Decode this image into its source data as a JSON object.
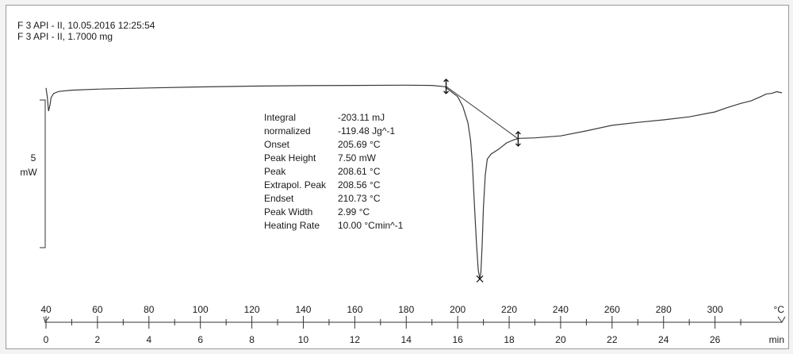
{
  "header": {
    "line1": "F 3 API - II, 10.05.2016 12:25:54",
    "line2": "F 3 API - II, 1.7000 mg"
  },
  "scale_bar": {
    "value": "5",
    "unit": "mW"
  },
  "results": [
    {
      "label": "Integral",
      "value": "-203.11 mJ"
    },
    {
      "label": "  normalized",
      "value": "-119.48 Jg^-1"
    },
    {
      "label": "Onset",
      "value": "205.69 °C"
    },
    {
      "label": "Peak Height",
      "value": "7.50 mW"
    },
    {
      "label": "Peak",
      "value": "208.61 °C"
    },
    {
      "label": "Extrapol. Peak",
      "value": "208.56 °C"
    },
    {
      "label": "Endset",
      "value": "210.73 °C"
    },
    {
      "label": "Peak Width",
      "value": "2.99 °C"
    },
    {
      "label": "Heating Rate",
      "value": "10.00 °Cmin^-1"
    }
  ],
  "colors": {
    "line": "#3a3a3a",
    "text": "#1a1a1a",
    "background": "#ffffff"
  },
  "chart_data": {
    "type": "line",
    "x_temperature": {
      "unit": "°C",
      "range": [
        40,
        326
      ],
      "ticks": [
        40,
        60,
        80,
        100,
        120,
        140,
        160,
        180,
        200,
        220,
        240,
        260,
        280,
        300
      ],
      "tick_labels": [
        "40",
        "60",
        "80",
        "100",
        "120",
        "140",
        "160",
        "180",
        "200",
        "220",
        "240",
        "260",
        "280",
        "300"
      ]
    },
    "x_time": {
      "unit": "min",
      "range": [
        0,
        28.6
      ],
      "ticks": [
        0,
        2,
        4,
        6,
        8,
        10,
        12,
        14,
        16,
        18,
        20,
        22,
        24,
        26
      ],
      "tick_labels": [
        "0",
        "2",
        "4",
        "6",
        "8",
        "10",
        "12",
        "14",
        "16",
        "18",
        "20",
        "22",
        "24",
        "26"
      ]
    },
    "y_heat_flow": {
      "unit": "mW",
      "range": [
        -8.4,
        1.2
      ]
    },
    "curve": {
      "x": [
        40,
        40.5,
        41,
        41.5,
        42,
        43,
        45,
        50,
        60,
        80,
        100,
        120,
        140,
        160,
        180,
        190,
        195,
        200,
        202,
        204,
        205,
        205.7,
        206.5,
        207.3,
        208,
        208.61,
        209,
        209.5,
        210,
        210.7,
        211.5,
        213,
        216,
        219,
        222,
        224,
        230,
        240,
        250,
        260,
        270,
        280,
        290,
        300,
        305,
        310,
        314,
        318,
        320,
        322,
        324,
        326
      ],
      "y": [
        0.0,
        -0.35,
        -0.93,
        -0.7,
        -0.38,
        -0.22,
        -0.14,
        -0.09,
        -0.05,
        0.0,
        0.04,
        0.07,
        0.09,
        0.1,
        0.11,
        0.1,
        0.05,
        -0.35,
        -0.75,
        -1.4,
        -2.1,
        -3.05,
        -4.7,
        -6.2,
        -7.3,
        -7.65,
        -7.4,
        -6.3,
        -4.8,
        -3.5,
        -2.85,
        -2.65,
        -2.45,
        -2.2,
        -2.07,
        -2.02,
        -2.0,
        -1.92,
        -1.72,
        -1.5,
        -1.38,
        -1.28,
        -1.16,
        -0.96,
        -0.78,
        -0.62,
        -0.52,
        -0.34,
        -0.24,
        -0.22,
        -0.15,
        -0.2
      ]
    },
    "baseline": {
      "x": [
        195.5,
        223.5
      ],
      "y": [
        0.06,
        -2.04
      ]
    },
    "markers": [
      {
        "kind": "limit",
        "x": 195.5,
        "y": 0.06
      },
      {
        "kind": "limit",
        "x": 223.5,
        "y": -2.04
      },
      {
        "kind": "peak",
        "x": 208.61,
        "y": -7.65
      }
    ],
    "xlabel": "",
    "ylabel": "",
    "title": "",
    "grid": false,
    "legend": "none"
  }
}
